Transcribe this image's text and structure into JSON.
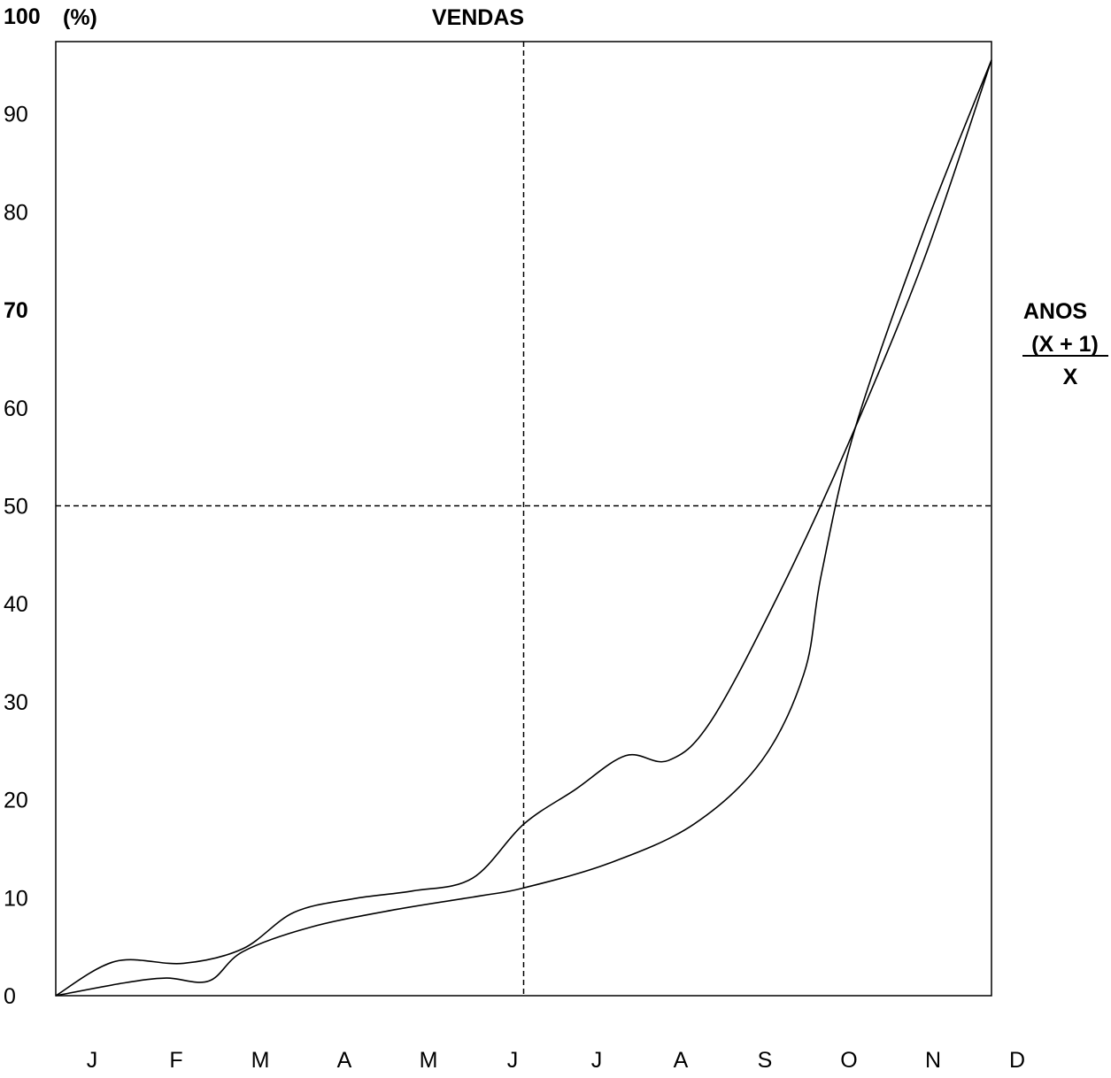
{
  "chart_data": {
    "type": "line",
    "title": "VENDAS",
    "ylabel": "(%)",
    "ylim": [
      0,
      100
    ],
    "y_ticks": [
      {
        "value": 0,
        "label": "0",
        "bold": false
      },
      {
        "value": 10,
        "label": "10",
        "bold": false
      },
      {
        "value": 20,
        "label": "20",
        "bold": false
      },
      {
        "value": 30,
        "label": "30",
        "bold": false
      },
      {
        "value": 40,
        "label": "40",
        "bold": false
      },
      {
        "value": 50,
        "label": "50",
        "bold": false
      },
      {
        "value": 60,
        "label": "60",
        "bold": false
      },
      {
        "value": 70,
        "label": "70",
        "bold": true
      },
      {
        "value": 80,
        "label": "80",
        "bold": false
      },
      {
        "value": 90,
        "label": "90",
        "bold": false
      },
      {
        "value": 100,
        "label": "100",
        "bold": true
      }
    ],
    "categories": [
      "J",
      "F",
      "M",
      "A",
      "M",
      "J",
      "J",
      "A",
      "S",
      "O",
      "N",
      "D"
    ],
    "reference_lines": {
      "x": 5.5,
      "y": 50,
      "style": "dashed"
    },
    "legend": {
      "title": "ANOS",
      "entries": [
        "(X + 1)",
        "X"
      ],
      "placement": "right"
    },
    "series": [
      {
        "points": [
          [
            0,
            0
          ],
          [
            0.7,
            3.5
          ],
          [
            1.5,
            3.3
          ],
          [
            2.2,
            4.8
          ],
          [
            2.8,
            8.5
          ],
          [
            3.5,
            9.9
          ],
          [
            4.2,
            10.7
          ],
          [
            4.9,
            12.0
          ],
          [
            5.5,
            17.5
          ],
          [
            6.1,
            21.0
          ],
          [
            6.7,
            24.5
          ],
          [
            7.2,
            24.0
          ],
          [
            7.7,
            28.0
          ],
          [
            8.5,
            41.0
          ],
          [
            9.3,
            56.0
          ],
          [
            10.2,
            75.0
          ],
          [
            11,
            95.5
          ]
        ]
      },
      {
        "points": [
          [
            0,
            0
          ],
          [
            0.8,
            1.3
          ],
          [
            1.3,
            1.8
          ],
          [
            1.8,
            1.5
          ],
          [
            2.2,
            4.5
          ],
          [
            3,
            7.0
          ],
          [
            4,
            8.8
          ],
          [
            5,
            10.2
          ],
          [
            5.5,
            11.0
          ],
          [
            6.5,
            13.5
          ],
          [
            7.5,
            17.5
          ],
          [
            8.3,
            24.0
          ],
          [
            8.8,
            33.0
          ],
          [
            9.0,
            43.0
          ],
          [
            9.4,
            58.0
          ],
          [
            10.2,
            78.0
          ],
          [
            11,
            95.5
          ]
        ]
      }
    ]
  }
}
